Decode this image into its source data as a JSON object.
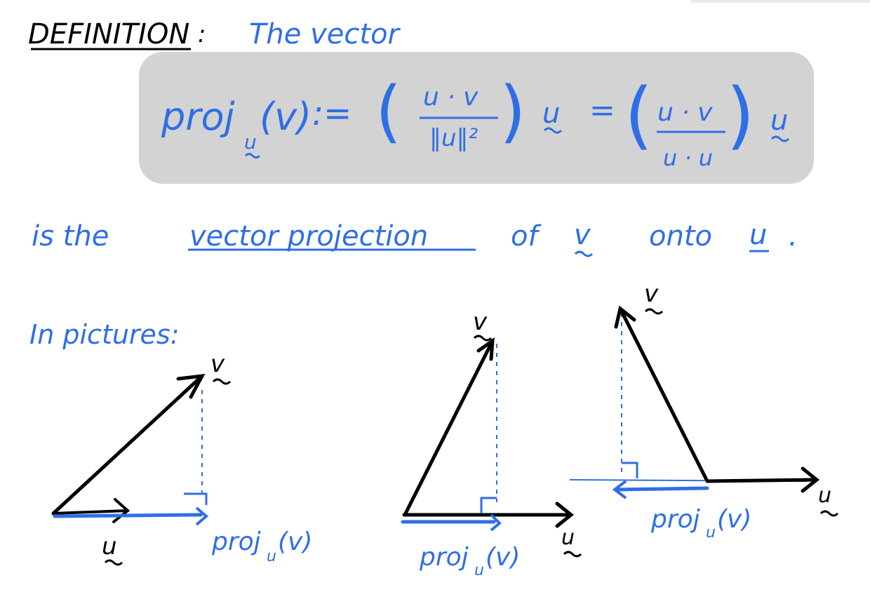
{
  "heading": {
    "label": "DEFINITION",
    "separator": ":",
    "rest": "The vector"
  },
  "formula": {
    "lhs": "proj",
    "lhs_sub": "u",
    "lhs_arg": "(v)",
    "assign": ":=",
    "frac1_num": "u · v",
    "frac1_den": "‖u‖²",
    "after1": "u",
    "equals": "=",
    "frac2_num": "u · v",
    "frac2_den": "u · u",
    "after2": "u"
  },
  "statement": {
    "is_the": "is the",
    "term": "vector projection",
    "of": "of",
    "v": "v",
    "onto": "onto",
    "u": "u",
    "period": "."
  },
  "pictures": {
    "intro": "In pictures:",
    "fig1": {
      "u_label": "u",
      "v_label": "v",
      "proj_label": "proj",
      "proj_sub": "u",
      "proj_arg": "(v)"
    },
    "fig2": {
      "u_label": "u",
      "v_label": "v",
      "proj_label": "proj",
      "proj_sub": "u",
      "proj_arg": "(v)"
    },
    "fig3": {
      "u_label": "u",
      "v_label": "v",
      "proj_label": "proj",
      "proj_sub": "u",
      "proj_arg": "(v)"
    }
  },
  "colors": {
    "ink_black": "#000000",
    "ink_blue": "#2f6fe6",
    "highlight_gray": "#d3d3d3"
  }
}
